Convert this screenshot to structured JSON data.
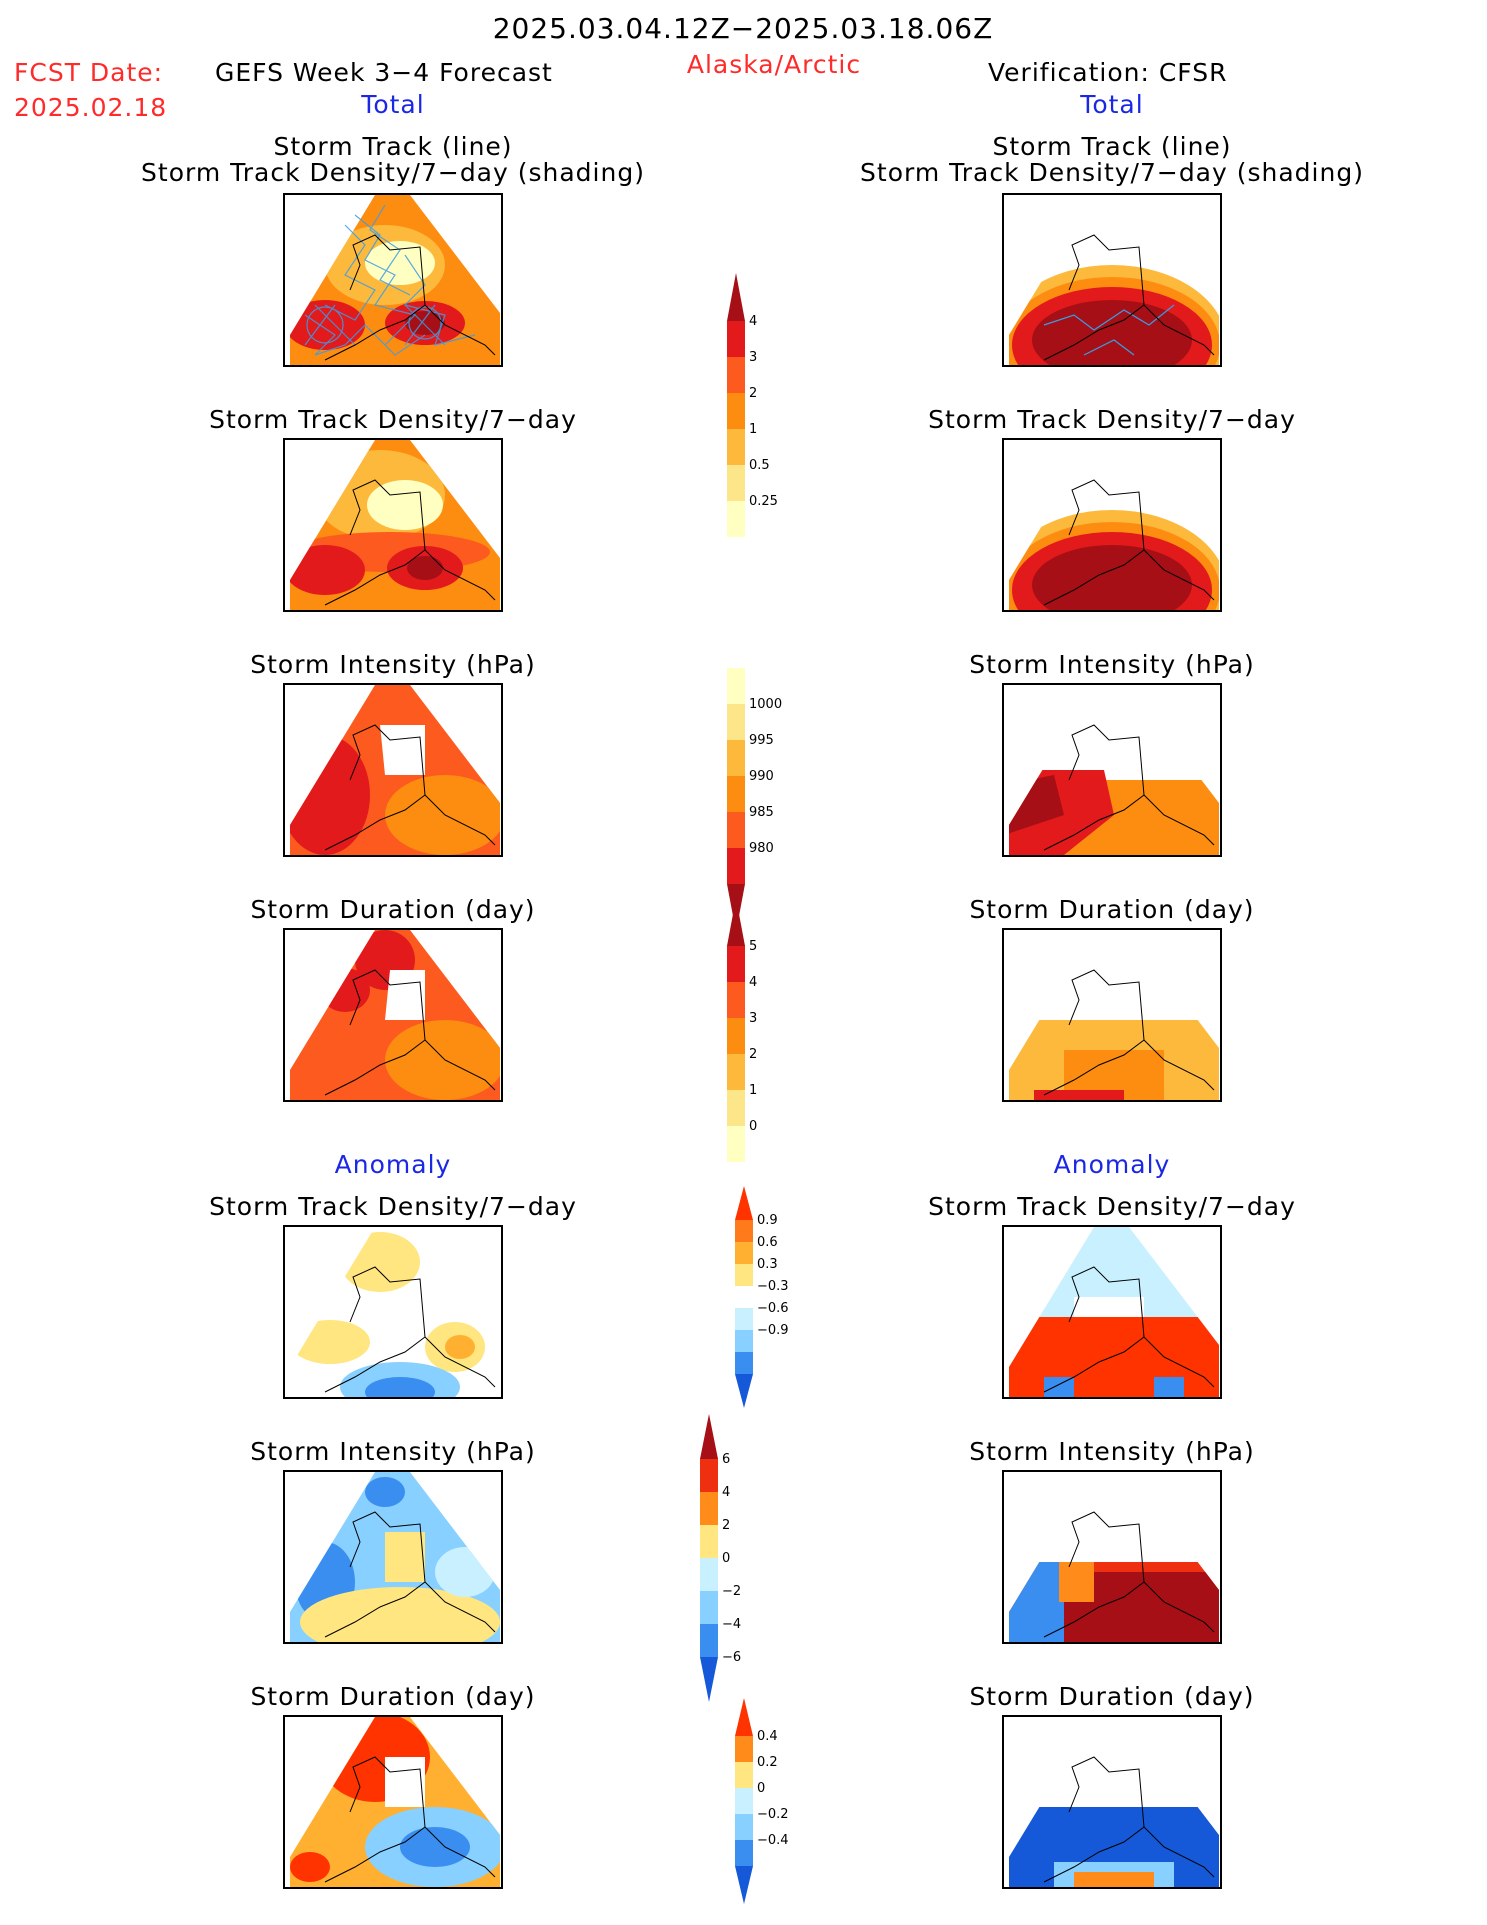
{
  "header": {
    "date_range": "2025.03.04.12Z−2025.03.18.06Z",
    "fcst_label": "FCST Date:",
    "fcst_date": "2025.02.18",
    "forecast_title": "GEFS Week 3−4 Forecast",
    "region": "Alaska/Arctic",
    "verification": "Verification: CFSR"
  },
  "sections": {
    "total_left": "Total",
    "total_right": "Total",
    "anomaly_left": "Anomaly",
    "anomaly_right": "Anomaly"
  },
  "panels": {
    "r1_title_line1": "Storm Track (line)",
    "r1_title_line2": "Storm Track Density/7−day (shading)",
    "r2_title": "Storm Track Density/7−day",
    "r3_title": "Storm Intensity (hPa)",
    "r4_title": "Storm Duration (day)",
    "r5_title": "Storm Track Density/7−day",
    "r6_title": "Storm Intensity (hPa)",
    "r7_title": "Storm Duration (day)"
  },
  "colorbars": {
    "density": {
      "labels": [
        "4",
        "3",
        "2",
        "1",
        "0.5",
        "0.25"
      ],
      "colors": [
        "#a50f15",
        "#e31a1c",
        "#fc5a1e",
        "#fd8d10",
        "#fdb93c",
        "#fde68a",
        "#ffffc2"
      ]
    },
    "intensity": {
      "labels": [
        "1000",
        "995",
        "990",
        "985",
        "980"
      ],
      "colors": [
        "#ffffc2",
        "#fde68a",
        "#fdb93c",
        "#fd8d10",
        "#fc5a1e",
        "#e31a1c",
        "#a50f15"
      ]
    },
    "duration": {
      "labels": [
        "5",
        "4",
        "3",
        "2",
        "1",
        "0"
      ],
      "colors": [
        "#a50f15",
        "#e31a1c",
        "#fc5a1e",
        "#fd8d10",
        "#fdb93c",
        "#fde68a",
        "#ffffc2"
      ]
    },
    "density_anom": {
      "labels": [
        "0.9",
        "0.6",
        "0.3",
        "−0.3",
        "−0.6",
        "−0.9"
      ],
      "colors": [
        "#ff3300",
        "#ff7a1a",
        "#ffb030",
        "#ffe680",
        "#ffffff",
        "#c8f0ff",
        "#88d0ff",
        "#3a8ef0",
        "#1659d8"
      ]
    },
    "intensity_anom": {
      "labels": [
        "6",
        "4",
        "2",
        "0",
        "−2",
        "−4",
        "−6"
      ],
      "colors": [
        "#a50f15",
        "#ee3010",
        "#ff8c1a",
        "#ffe680",
        "#c8f0ff",
        "#88d0ff",
        "#3a8ef0",
        "#1659d8"
      ]
    },
    "duration_anom": {
      "labels": [
        "0.4",
        "0.2",
        "0",
        "−0.2",
        "−0.4"
      ],
      "colors": [
        "#ff3300",
        "#ff8c1a",
        "#ffe680",
        "#c8f0ff",
        "#88d0ff",
        "#3a8ef0",
        "#1659d8"
      ]
    }
  }
}
